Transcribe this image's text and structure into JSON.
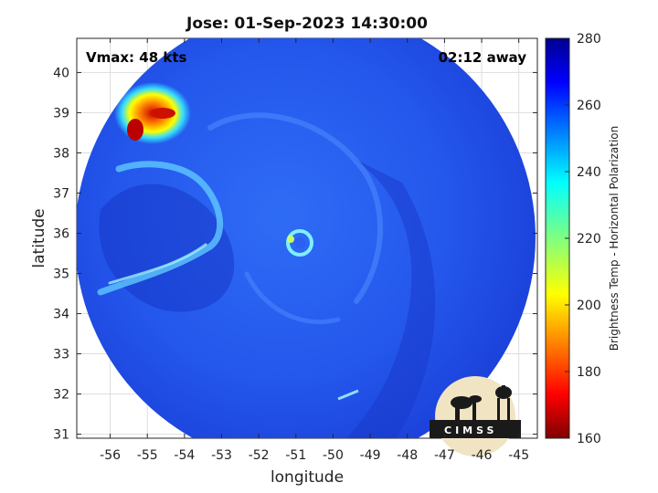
{
  "chart_data": {
    "type": "heatmap",
    "title": "Jose: 01-Sep-2023 14:30:00",
    "xlabel": "longitude",
    "ylabel": "latitude",
    "xlim": [
      -56.9,
      -44.5
    ],
    "ylim": [
      30.9,
      40.85
    ],
    "xticks": [
      -56,
      -55,
      -54,
      -53,
      -52,
      -51,
      -50,
      -49,
      -48,
      -47,
      -46,
      -45
    ],
    "yticks": [
      31,
      32,
      33,
      34,
      35,
      36,
      37,
      38,
      39,
      40
    ],
    "grid": true,
    "annotations": {
      "vmax": "Vmax: 48 kts",
      "time_offset": "02:12 away"
    },
    "colorbar": {
      "label": "Brightness Temp - Horizontal Polarization",
      "range": [
        160,
        280
      ],
      "ticks": [
        160,
        180,
        200,
        220,
        240,
        260,
        280
      ],
      "colormap": "jet"
    },
    "swath": {
      "center_lon": -50.75,
      "center_lat": 35.9
    },
    "storm_center": {
      "lon": -51.3,
      "lat": 35.9
    },
    "features": [
      {
        "label": "eye ring",
        "lon": -51.3,
        "lat": 35.9,
        "tb": 225
      },
      {
        "label": "cold cloud cluster",
        "lon": -55.0,
        "lat": 39.0,
        "tb": 185
      },
      {
        "label": "rainband",
        "lon": -54.3,
        "lat": 35.4,
        "tb": 238
      }
    ]
  },
  "logo": {
    "text": "CIMSS"
  },
  "colors": {
    "background": "#2460ee",
    "swath_edge": "#1e4fe0",
    "grid": "#d9d9d9"
  }
}
